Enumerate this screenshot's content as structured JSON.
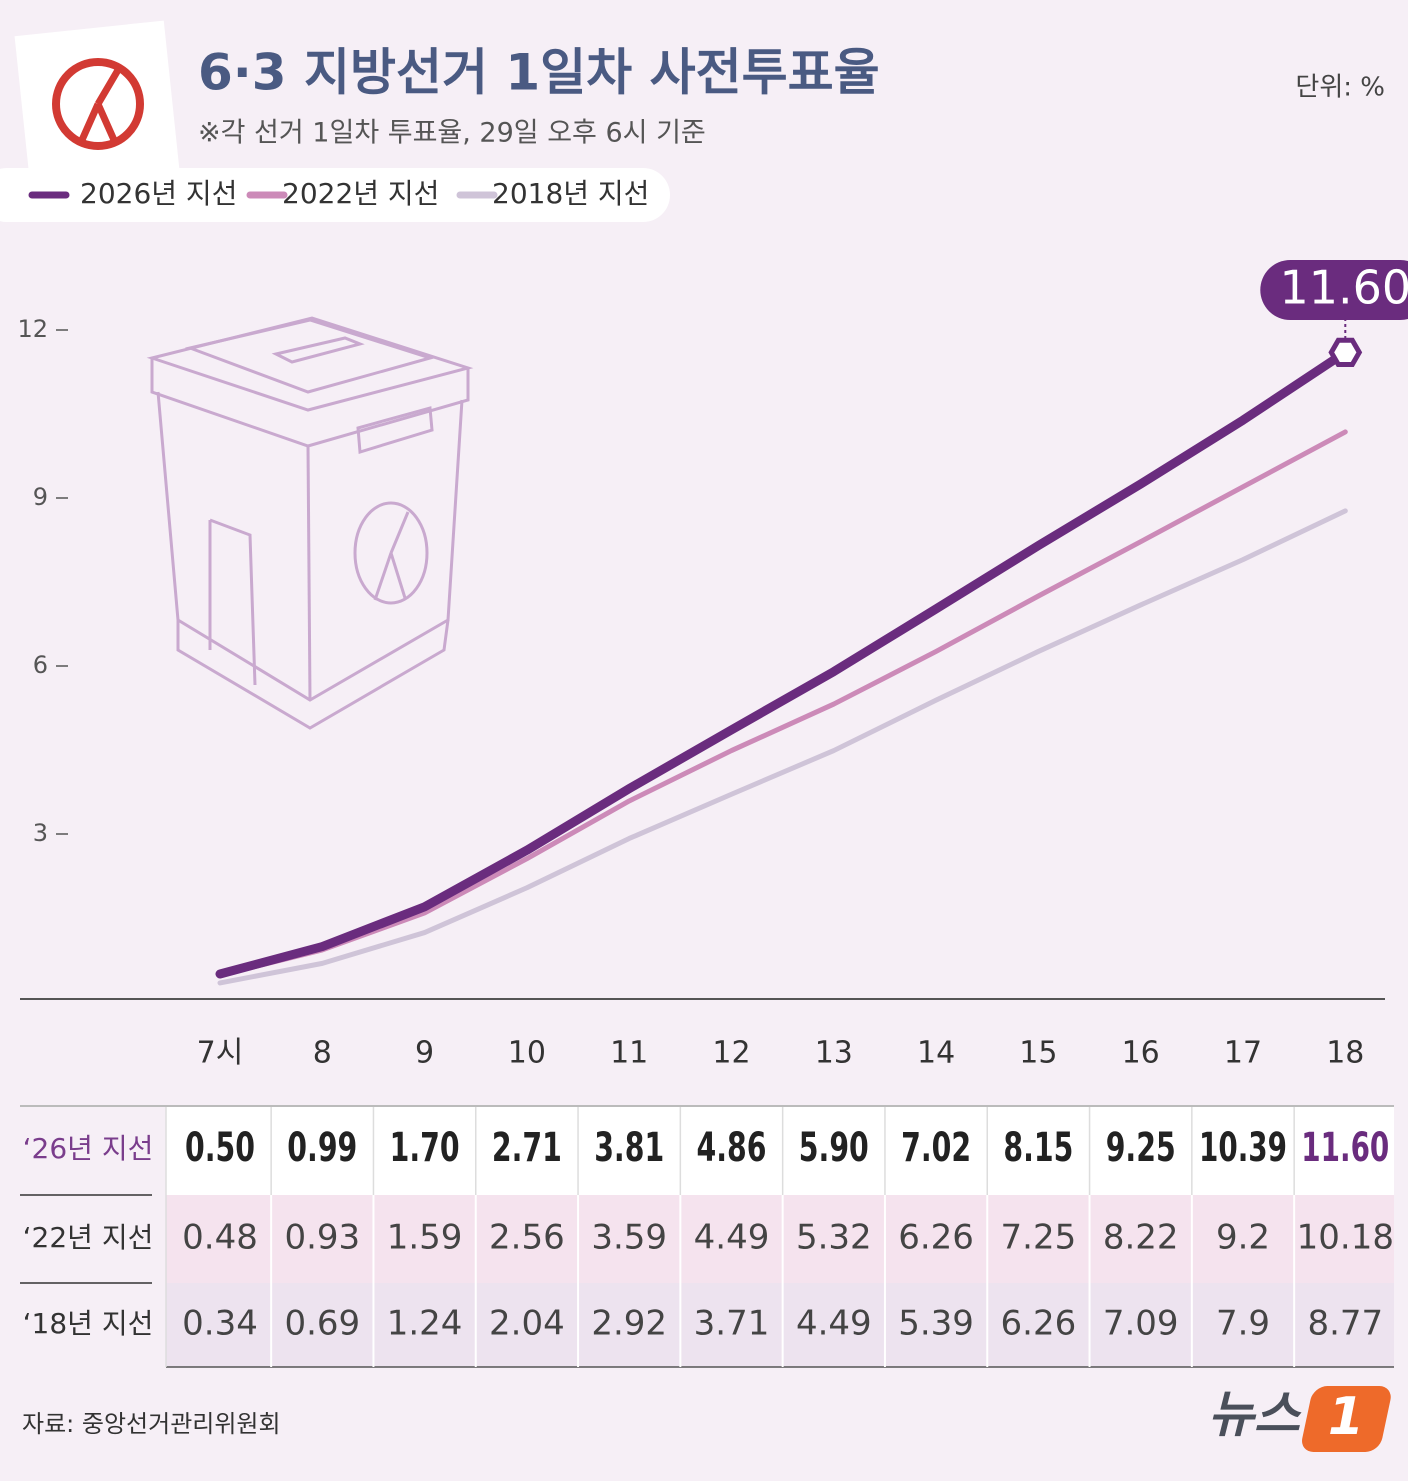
{
  "chart_data": {
    "type": "line",
    "title": "6·3 지방선거 1일차 사전투표율",
    "subtitle": "※각 선거 1일차 투표율, 29일 오후 6시 기준",
    "unit": "단위: %",
    "source": "자료: 중앙선거관리위원회",
    "brand": [
      "뉴스",
      "1"
    ],
    "categories": [
      "7시",
      "8",
      "9",
      "10",
      "11",
      "12",
      "13",
      "14",
      "15",
      "16",
      "17",
      "18"
    ],
    "series": [
      {
        "name": "2026년 지선",
        "table_label": "‘26년 지선",
        "color": "#6a2c7e",
        "values": [
          0.5,
          0.99,
          1.7,
          2.71,
          3.81,
          4.86,
          5.9,
          7.02,
          8.15,
          9.25,
          10.39,
          11.6
        ],
        "value_labels": [
          "0.50",
          "0.99",
          "1.70",
          "2.71",
          "3.81",
          "4.86",
          "5.90",
          "7.02",
          "8.15",
          "9.25",
          "10.39",
          "11.60"
        ]
      },
      {
        "name": "2022년 지선",
        "table_label": "‘22년 지선",
        "color": "#cc8ab8",
        "values": [
          0.48,
          0.93,
          1.59,
          2.56,
          3.59,
          4.49,
          5.32,
          6.26,
          7.25,
          8.22,
          9.2,
          10.18
        ]
      },
      {
        "name": "2018년 지선",
        "table_label": "‘18년 지선",
        "color": "#cfc4d8",
        "values": [
          0.34,
          0.69,
          1.24,
          2.04,
          2.92,
          3.71,
          4.49,
          5.39,
          6.26,
          7.09,
          7.9,
          8.77
        ]
      }
    ],
    "ylim": [
      0,
      12
    ],
    "yticks": [
      3,
      6,
      9,
      12
    ],
    "grid": false
  }
}
